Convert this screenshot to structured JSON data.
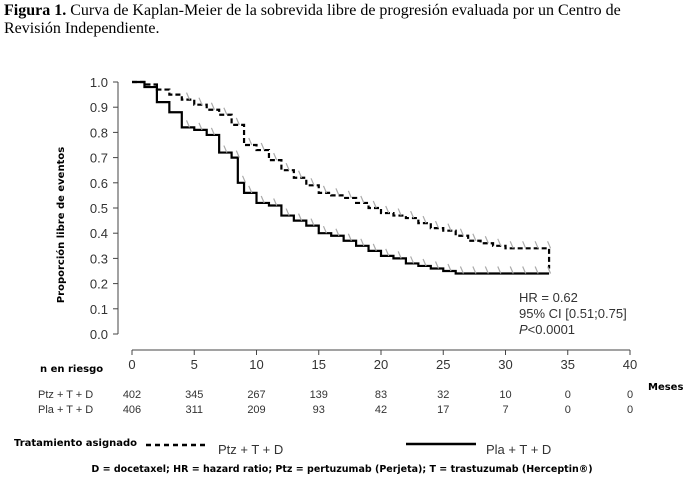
{
  "caption": {
    "label": "Figura 1.",
    "text": "Curva de Kaplan-Meier de la sobrevida libre de progresión evaluada por un Centro de Revisión Independiente."
  },
  "chart_data": {
    "type": "line",
    "title": "",
    "xlabel": "Meses",
    "ylabel": "Proporción libre de eventos",
    "xlim": [
      0,
      40
    ],
    "ylim": [
      0,
      1
    ],
    "x_ticks": [
      "0",
      "5",
      "10",
      "15",
      "20",
      "25",
      "30",
      "35",
      "40"
    ],
    "y_ticks": [
      "0.0",
      "0.1",
      "0.2",
      "0.3",
      "0.4",
      "0.5",
      "0.6",
      "0.7",
      "0.8",
      "0.9",
      "1.0"
    ],
    "series": [
      {
        "name": "Ptz + T + D",
        "style": "dashed",
        "points": [
          [
            0,
            1.0
          ],
          [
            1,
            0.99
          ],
          [
            2,
            0.97
          ],
          [
            3,
            0.95
          ],
          [
            4,
            0.93
          ],
          [
            5,
            0.91
          ],
          [
            6,
            0.89
          ],
          [
            7,
            0.87
          ],
          [
            8,
            0.83
          ],
          [
            9,
            0.75
          ],
          [
            10,
            0.73
          ],
          [
            11,
            0.69
          ],
          [
            12,
            0.65
          ],
          [
            13,
            0.62
          ],
          [
            14,
            0.59
          ],
          [
            15,
            0.56
          ],
          [
            16,
            0.55
          ],
          [
            17,
            0.54
          ],
          [
            18,
            0.52
          ],
          [
            19,
            0.5
          ],
          [
            20,
            0.48
          ],
          [
            21,
            0.47
          ],
          [
            22,
            0.46
          ],
          [
            23,
            0.44
          ],
          [
            24,
            0.42
          ],
          [
            25,
            0.41
          ],
          [
            26,
            0.39
          ],
          [
            27,
            0.37
          ],
          [
            28,
            0.36
          ],
          [
            29,
            0.35
          ],
          [
            30,
            0.34
          ],
          [
            31,
            0.34
          ],
          [
            32,
            0.34
          ],
          [
            33,
            0.34
          ],
          [
            33.5,
            0.26
          ]
        ]
      },
      {
        "name": "Pla + T + D",
        "style": "solid",
        "points": [
          [
            0,
            1.0
          ],
          [
            1,
            0.98
          ],
          [
            2,
            0.92
          ],
          [
            3,
            0.88
          ],
          [
            4,
            0.82
          ],
          [
            5,
            0.81
          ],
          [
            6,
            0.79
          ],
          [
            7,
            0.72
          ],
          [
            8,
            0.7
          ],
          [
            8.5,
            0.6
          ],
          [
            9,
            0.56
          ],
          [
            10,
            0.52
          ],
          [
            11,
            0.51
          ],
          [
            12,
            0.47
          ],
          [
            13,
            0.45
          ],
          [
            14,
            0.43
          ],
          [
            15,
            0.4
          ],
          [
            16,
            0.39
          ],
          [
            17,
            0.37
          ],
          [
            18,
            0.35
          ],
          [
            19,
            0.33
          ],
          [
            20,
            0.31
          ],
          [
            21,
            0.3
          ],
          [
            22,
            0.28
          ],
          [
            23,
            0.27
          ],
          [
            24,
            0.26
          ],
          [
            25,
            0.25
          ],
          [
            26,
            0.24
          ],
          [
            27,
            0.24
          ],
          [
            28,
            0.24
          ],
          [
            29,
            0.24
          ],
          [
            30,
            0.24
          ],
          [
            31,
            0.24
          ],
          [
            32,
            0.24
          ],
          [
            33,
            0.24
          ],
          [
            33.5,
            0.24
          ]
        ]
      }
    ],
    "annotations": [
      "HR = 0.62",
      "95% CI [0.51;0.75]",
      "<0.0001"
    ],
    "annotation_p_symbol": "P",
    "risk_table": {
      "title": "n en riesgo",
      "rows": [
        {
          "label": "Ptz + T + D",
          "values": [
            "402",
            "345",
            "267",
            "139",
            "83",
            "32",
            "10",
            "0",
            "0"
          ]
        },
        {
          "label": "Pla + T + D",
          "values": [
            "406",
            "311",
            "209",
            "93",
            "42",
            "17",
            "7",
            "0",
            "0"
          ]
        }
      ]
    },
    "legend": {
      "title": "Tratamiento asignado",
      "entries": [
        {
          "label": "Ptz + T + D",
          "style": "dashed"
        },
        {
          "label": "Pla + T + D",
          "style": "solid"
        }
      ]
    },
    "grid": false
  },
  "footnote": "D = docetaxel; HR = hazard ratio; Ptz = pertuzumab (Perjeta); T = trastuzumab (Herceptin®)",
  "colors": {
    "line": "#000000",
    "axis": "#444444",
    "censor": "#aaaaaa"
  }
}
